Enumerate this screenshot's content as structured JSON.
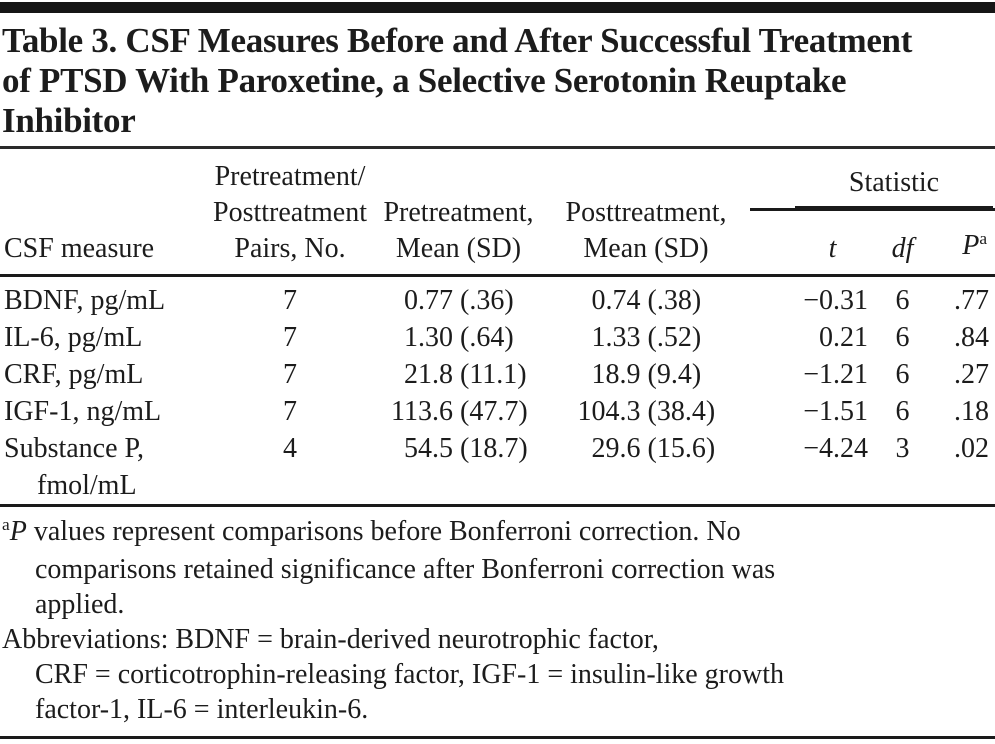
{
  "title": {
    "lines": [
      "Table 3. CSF Measures Before and After Successful Treatment",
      "of PTSD With Paroxetine, a Selective Serotonin Reuptake",
      "Inhibitor"
    ]
  },
  "table": {
    "header": {
      "measure": "CSF measure",
      "pairs_lines": [
        "Pretreatment/",
        "Posttreatment",
        "Pairs, No."
      ],
      "pre_lines": [
        "Pretreatment,",
        "Mean (SD)"
      ],
      "post_lines": [
        "Posttreatment,",
        "Mean (SD)"
      ],
      "statistic": "Statistic",
      "t": "t",
      "df": "df",
      "p": "P",
      "p_sup": "a"
    },
    "rows": [
      {
        "measure": "BDNF, pg/mL",
        "measure_line2": "",
        "pairs": "7",
        "pre_mean": "0.77",
        "pre_sd": "(.36)",
        "post_mean": "0.74",
        "post_sd": "(.38)",
        "t": "−0.31",
        "df": "6",
        "p": ".77"
      },
      {
        "measure": "IL-6, pg/mL",
        "measure_line2": "",
        "pairs": "7",
        "pre_mean": "1.30",
        "pre_sd": "(.64)",
        "post_mean": "1.33",
        "post_sd": "(.52)",
        "t": "0.21",
        "df": "6",
        "p": ".84"
      },
      {
        "measure": "CRF, pg/mL",
        "measure_line2": "",
        "pairs": "7",
        "pre_mean": "21.8",
        "pre_sd": "(11.1)",
        "post_mean": "18.9",
        "post_sd": "(9.4)",
        "t": "−1.21",
        "df": "6",
        "p": ".27"
      },
      {
        "measure": "IGF-1, ng/mL",
        "measure_line2": "",
        "pairs": "7",
        "pre_mean": "113.6",
        "pre_sd": "(47.7)",
        "post_mean": "104.3",
        "post_sd": "(38.4)",
        "t": "−1.51",
        "df": "6",
        "p": ".18"
      },
      {
        "measure": "Substance P,",
        "measure_line2": "fmol/mL",
        "pairs": "4",
        "pre_mean": "54.5",
        "pre_sd": "(18.7)",
        "post_mean": "29.6",
        "post_sd": "(15.6)",
        "t": "−4.24",
        "df": "3",
        "p": ".02"
      }
    ]
  },
  "footnotes": {
    "a_marker": "a",
    "a_p": "P",
    "a_rest": " values represent comparisons before Bonferroni correction. No",
    "a_line2": "comparisons retained significance after Bonferroni correction was",
    "a_line3": "applied.",
    "abbr_line1": "Abbreviations: BDNF = brain-derived neurotrophic factor,",
    "abbr_line2": "CRF = corticotrophin-releasing factor, IGF-1 = insulin-like growth",
    "abbr_line3": "factor-1, IL-6 = interleukin-6."
  },
  "colors": {
    "text": "#1c1c1c",
    "rule": "#1a1a1a",
    "top_bar": "#161616",
    "background": "#ffffff"
  }
}
